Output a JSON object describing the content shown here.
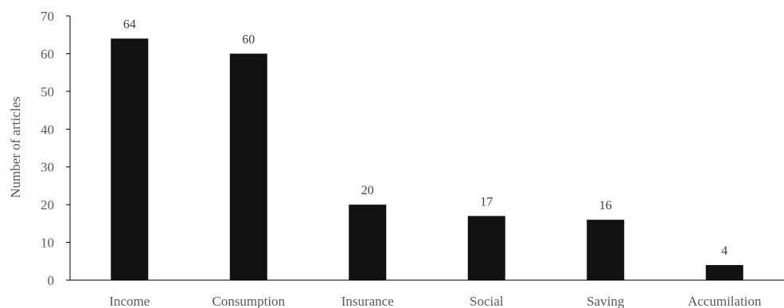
{
  "chart_data": {
    "type": "bar",
    "title": "",
    "xlabel": "",
    "ylabel": "Number of articles",
    "categories": [
      "Income",
      "Consumption",
      "Insurance",
      "Social",
      "Saving",
      "Accumilation"
    ],
    "values": [
      64,
      60,
      20,
      17,
      16,
      4
    ],
    "ylim": [
      0,
      70
    ],
    "yticks": [
      0,
      10,
      20,
      30,
      40,
      50,
      60,
      70
    ],
    "grid": false,
    "legend": "none",
    "bar_color": "#111111"
  }
}
